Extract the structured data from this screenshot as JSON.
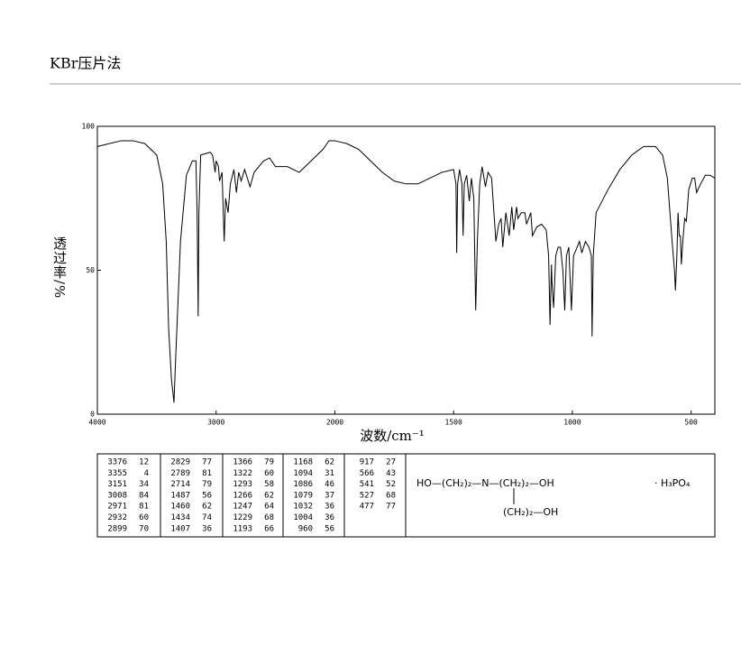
{
  "header": {
    "title": "KBr压片法"
  },
  "chart_data": {
    "type": "line",
    "xlabel": "波数/cm⁻¹",
    "ylabel": "透过率/%",
    "xlim": [
      4000,
      400
    ],
    "x_scale_break": 2000,
    "xticks": [
      4000,
      3000,
      2000,
      1500,
      1000,
      500
    ],
    "ylim": [
      0,
      100
    ],
    "yticks": [
      0,
      50,
      100
    ],
    "color": "#000000",
    "x": [
      4000,
      3800,
      3700,
      3600,
      3500,
      3450,
      3420,
      3400,
      3376,
      3365,
      3355,
      3340,
      3300,
      3250,
      3200,
      3170,
      3160,
      3151,
      3145,
      3130,
      3050,
      3030,
      3008,
      3000,
      2980,
      2971,
      2950,
      2932,
      2920,
      2899,
      2880,
      2850,
      2829,
      2810,
      2789,
      2760,
      2714,
      2680,
      2600,
      2550,
      2500,
      2400,
      2300,
      2200,
      2100,
      2050,
      2000,
      1950,
      1900,
      1850,
      1800,
      1750,
      1700,
      1650,
      1600,
      1550,
      1500,
      1490,
      1487,
      1483,
      1475,
      1465,
      1460,
      1455,
      1445,
      1434,
      1425,
      1415,
      1407,
      1400,
      1390,
      1380,
      1366,
      1355,
      1340,
      1322,
      1310,
      1300,
      1293,
      1280,
      1266,
      1255,
      1247,
      1235,
      1229,
      1215,
      1200,
      1193,
      1175,
      1168,
      1150,
      1130,
      1110,
      1100,
      1094,
      1088,
      1086,
      1079,
      1070,
      1060,
      1050,
      1040,
      1032,
      1025,
      1015,
      1004,
      995,
      980,
      970,
      960,
      945,
      930,
      920,
      917,
      912,
      900,
      850,
      800,
      750,
      700,
      650,
      620,
      600,
      580,
      570,
      566,
      560,
      555,
      550,
      545,
      541,
      535,
      527,
      520,
      510,
      495,
      485,
      477,
      460,
      440,
      420,
      400
    ],
    "values": [
      93,
      95,
      95,
      94,
      90,
      80,
      60,
      30,
      12,
      8,
      4,
      20,
      60,
      83,
      88,
      88,
      70,
      34,
      70,
      90,
      91,
      90,
      84,
      88,
      86,
      81,
      84,
      60,
      75,
      70,
      80,
      85,
      77,
      84,
      81,
      85,
      79,
      84,
      88,
      89,
      86,
      86,
      84,
      88,
      92,
      95,
      95,
      94,
      92,
      88,
      84,
      81,
      80,
      80,
      82,
      84,
      85,
      80,
      56,
      80,
      85,
      80,
      62,
      80,
      83,
      74,
      82,
      75,
      36,
      60,
      80,
      86,
      79,
      84,
      82,
      60,
      66,
      68,
      58,
      70,
      62,
      72,
      64,
      72,
      68,
      70,
      70,
      66,
      70,
      62,
      65,
      66,
      64,
      55,
      31,
      52,
      46,
      37,
      55,
      58,
      58,
      50,
      36,
      55,
      58,
      36,
      55,
      58,
      60,
      56,
      60,
      58,
      55,
      27,
      55,
      70,
      78,
      85,
      90,
      93,
      93,
      90,
      82,
      60,
      50,
      43,
      55,
      70,
      62,
      62,
      52,
      60,
      68,
      67,
      78,
      82,
      82,
      77,
      80,
      83,
      83,
      82
    ]
  },
  "peak_table": [
    [
      3376,
      12
    ],
    [
      3355,
      4
    ],
    [
      3151,
      34
    ],
    [
      3008,
      84
    ],
    [
      2971,
      81
    ],
    [
      2932,
      60
    ],
    [
      2899,
      70
    ],
    [
      2829,
      77
    ],
    [
      2789,
      81
    ],
    [
      2714,
      79
    ],
    [
      1487,
      56
    ],
    [
      1460,
      62
    ],
    [
      1434,
      74
    ],
    [
      1407,
      36
    ],
    [
      1366,
      79
    ],
    [
      1322,
      60
    ],
    [
      1293,
      58
    ],
    [
      1266,
      62
    ],
    [
      1247,
      64
    ],
    [
      1229,
      68
    ],
    [
      1193,
      66
    ],
    [
      1168,
      62
    ],
    [
      1094,
      31
    ],
    [
      1086,
      46
    ],
    [
      1079,
      37
    ],
    [
      1032,
      36
    ],
    [
      1004,
      36
    ],
    [
      960,
      56
    ],
    [
      917,
      27
    ],
    [
      566,
      43
    ],
    [
      541,
      52
    ],
    [
      527,
      68
    ],
    [
      477,
      77
    ]
  ],
  "structure": {
    "main": "HO—(CH₂)₂—N—(CH₂)₂—OH",
    "salt": "· H₃PO₄",
    "branch": "(CH₂)₂—OH"
  }
}
